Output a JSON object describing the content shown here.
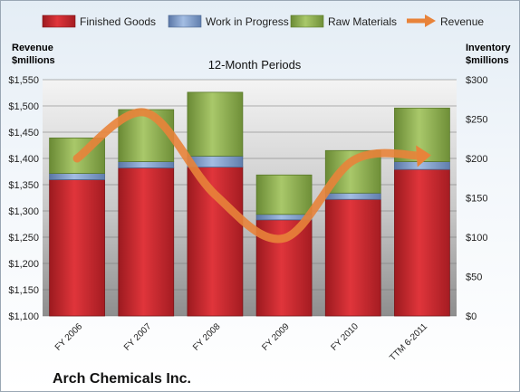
{
  "chart_data": {
    "type": "bar",
    "stacked": true,
    "title": "Arch Chemicals Inc.",
    "subtitle": "12-Month Periods",
    "left_axis_label": "Revenue\n$millions",
    "right_axis_label": "Inventory\n$millions",
    "categories": [
      "FY 2006",
      "FY 2007",
      "FY 2008",
      "FY 2009",
      "FY 2010",
      "TTM 6-2011"
    ],
    "series": [
      {
        "name": "Finished Goods",
        "axis": "right",
        "type": "bar",
        "color": "#c8252c",
        "values": [
          173,
          188,
          189,
          122,
          148,
          186
        ]
      },
      {
        "name": "Work in Progress",
        "axis": "right",
        "type": "bar",
        "color": "#7b9bcc",
        "values": [
          8,
          8,
          14,
          7,
          8,
          10
        ]
      },
      {
        "name": "Raw Materials",
        "axis": "right",
        "type": "bar",
        "color": "#8fae4e",
        "values": [
          45,
          66,
          81,
          50,
          54,
          68
        ]
      },
      {
        "name": "Revenue",
        "axis": "left",
        "type": "line",
        "color": "#e8833a",
        "values": [
          1400,
          1487,
          1331,
          1248,
          1396,
          1405
        ]
      }
    ],
    "left_ylim": [
      1100,
      1550
    ],
    "left_ticks": [
      "$1,100",
      "$1,150",
      "$1,200",
      "$1,250",
      "$1,300",
      "$1,350",
      "$1,400",
      "$1,450",
      "$1,500",
      "$1,550"
    ],
    "right_ylim": [
      0,
      300
    ],
    "right_ticks": [
      "$0",
      "$50",
      "$100",
      "$150",
      "$200",
      "$250",
      "$300"
    ],
    "grid": true,
    "legend_position": "top"
  }
}
